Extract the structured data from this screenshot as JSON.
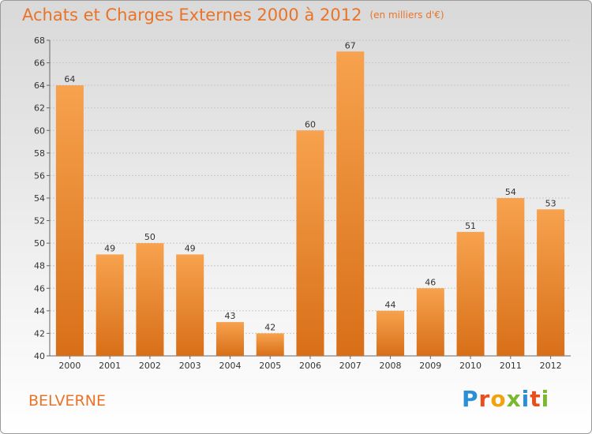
{
  "header": {
    "title": "Achats et Charges Externes 2000 à 2012",
    "subtitle": "(en milliers d'€)"
  },
  "footer": {
    "commune": "BELVERNE",
    "brand": "Proxiti"
  },
  "colors": {
    "bar_light": "#f7a24e",
    "bar_dark": "#d86f18",
    "accent": "#e8742a"
  },
  "chart_data": {
    "type": "bar",
    "title": "Achats et Charges Externes 2000 à 2012",
    "subtitle": "(en milliers d'€)",
    "categories": [
      "2000",
      "2001",
      "2002",
      "2003",
      "2004",
      "2005",
      "2006",
      "2007",
      "2008",
      "2009",
      "2010",
      "2011",
      "2012"
    ],
    "values": [
      64,
      49,
      50,
      49,
      43,
      42,
      60,
      67,
      44,
      46,
      51,
      54,
      53
    ],
    "ylim": [
      40,
      68
    ],
    "yticks": [
      40,
      42,
      44,
      46,
      48,
      50,
      52,
      54,
      56,
      58,
      60,
      62,
      64,
      66,
      68
    ],
    "grid": true,
    "xlabel": "",
    "ylabel": ""
  }
}
